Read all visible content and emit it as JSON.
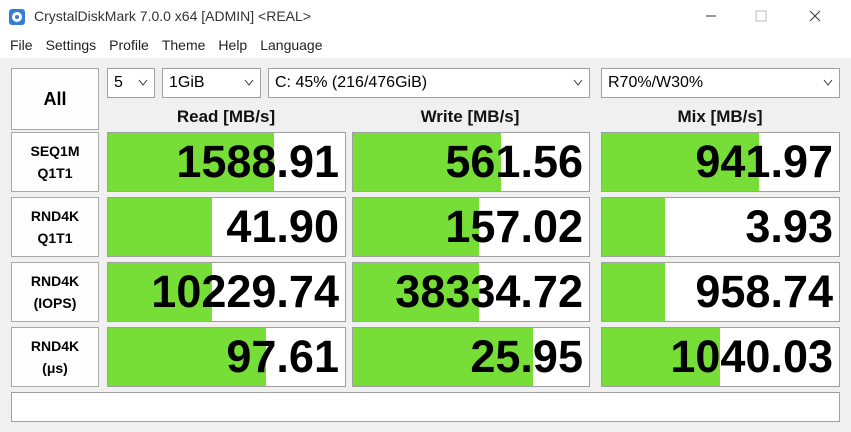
{
  "window": {
    "title": "CrystalDiskMark 7.0.0 x64 [ADMIN] <REAL>",
    "menu": [
      "File",
      "Settings",
      "Profile",
      "Theme",
      "Help",
      "Language"
    ]
  },
  "controls": {
    "all_button": "All",
    "count": "5",
    "size": "1GiB",
    "drive": "C: 45% (216/476GiB)",
    "mix": "R70%/W30%"
  },
  "table": {
    "headers": [
      "Read [MB/s]",
      "Write [MB/s]",
      "Mix [MB/s]"
    ],
    "rows": [
      {
        "label": [
          "SEQ1M",
          "Q1T1"
        ],
        "values": [
          "1588.91",
          "561.56",
          "941.97"
        ]
      },
      {
        "label": [
          "RND4K",
          "Q1T1"
        ],
        "values": [
          "41.90",
          "157.02",
          "3.93"
        ]
      },
      {
        "label": [
          "RND4K",
          "(IOPS)"
        ],
        "values": [
          "10229.74",
          "38334.72",
          "958.74"
        ]
      },
      {
        "label": [
          "RND4K",
          "(μs)"
        ],
        "values": [
          "97.61",
          "25.95",
          "1040.03"
        ]
      }
    ]
  }
}
